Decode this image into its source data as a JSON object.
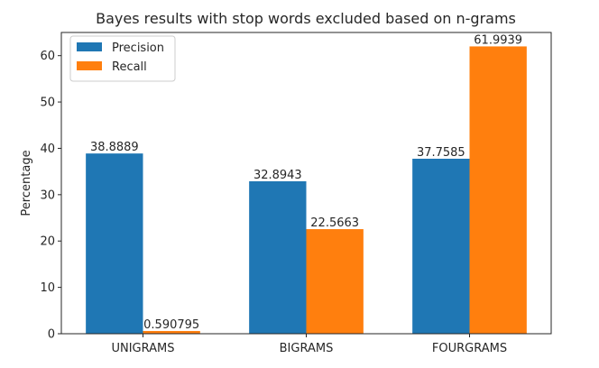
{
  "chart_data": {
    "type": "bar",
    "title": "Bayes results with stop words excluded based on n-grams",
    "xlabel": "",
    "ylabel": "Percentage",
    "categories": [
      "UNIGRAMS",
      "BIGRAMS",
      "FOURGRAMS"
    ],
    "series": [
      {
        "name": "Precision",
        "color": "#1f77b4",
        "values": [
          38.8889,
          32.8943,
          37.7585
        ],
        "labels": [
          "38.8889",
          "32.8943",
          "37.7585"
        ]
      },
      {
        "name": "Recall",
        "color": "#ff7f0e",
        "values": [
          0.590795,
          22.5663,
          61.9939
        ],
        "labels": [
          "0.590795",
          "22.5663",
          "61.9939"
        ]
      }
    ],
    "ylim": [
      0,
      65
    ],
    "yticks": [
      0,
      10,
      20,
      30,
      40,
      50,
      60
    ],
    "grid": false,
    "legend_position": "top-left"
  }
}
